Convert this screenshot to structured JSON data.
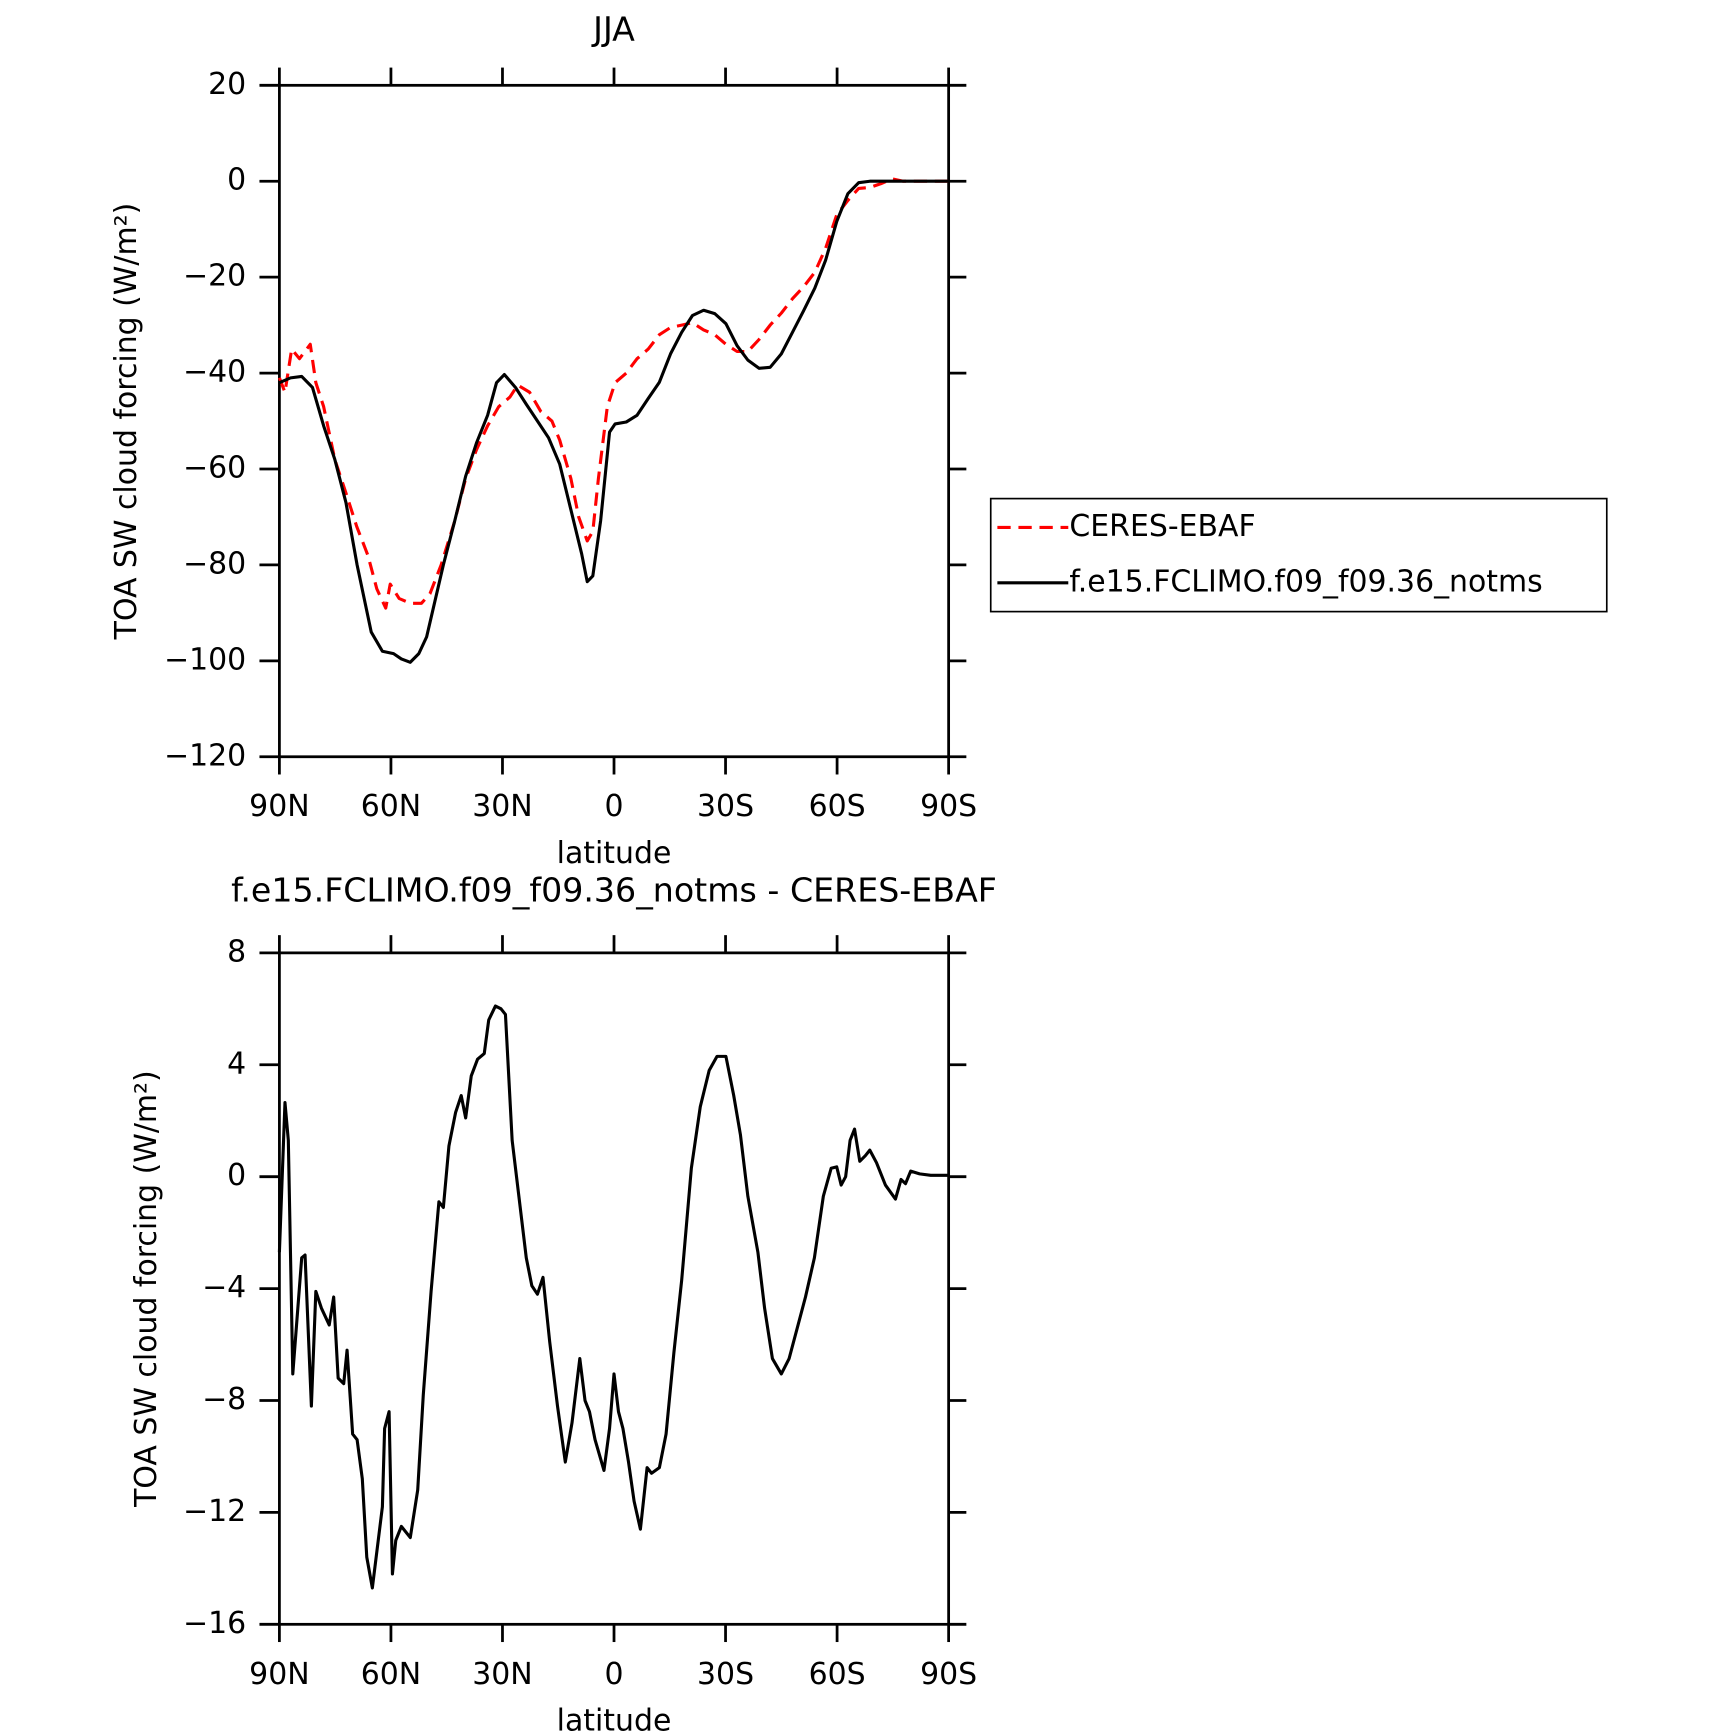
{
  "chart_data": [
    {
      "type": "line",
      "title": "JJA",
      "xlabel": "latitude",
      "ylabel": "TOA SW cloud forcing (W/m²)",
      "xlim": [
        90,
        -90
      ],
      "xticks": [
        {
          "value": 90,
          "label": "90N"
        },
        {
          "value": 60,
          "label": "60N"
        },
        {
          "value": 30,
          "label": "30N"
        },
        0,
        {
          "value": -30,
          "label": "30S"
        },
        {
          "value": -60,
          "label": "60S"
        },
        {
          "value": -90,
          "label": "90S"
        }
      ],
      "ylim": [
        -120,
        20
      ],
      "yticks": [
        {
          "value": -120,
          "label": "−120"
        },
        {
          "value": -100,
          "label": "−100"
        },
        {
          "value": -80,
          "label": "−80"
        },
        {
          "value": -60,
          "label": "−60"
        },
        {
          "value": -40,
          "label": "−40"
        },
        {
          "value": -20,
          "label": "−20"
        },
        0,
        20
      ],
      "legend": "right",
      "series": [
        {
          "name": "CERES-EBAF",
          "color": "#ff0000",
          "line_style": "dashed",
          "x": [
            90,
            88.5,
            86.7,
            84.6,
            81.7,
            80.2,
            78.1,
            75.1,
            72.1,
            69.2,
            66.2,
            63.8,
            61.4,
            60.2,
            57.8,
            54.8,
            51.8,
            49.5,
            46.5,
            42.9,
            39.9,
            37,
            34,
            31,
            28,
            25.9,
            22.7,
            19.7,
            16.7,
            14.6,
            11.6,
            9.5,
            7.2,
            5.7,
            4.2,
            1.8,
            -0.3,
            -3.3,
            -6.2,
            -9.2,
            -12.2,
            -15.2,
            -18.2,
            -21.1,
            -24.1,
            -27.1,
            -30.1,
            -33.1,
            -36,
            -39,
            -42,
            -45,
            -48,
            -51,
            -54,
            -56.9,
            -59.9,
            -62.9,
            -65.8,
            -68.8,
            -71.8,
            -74.8,
            -77.8,
            -90
          ],
          "values": [
            -41,
            -44,
            -35,
            -37,
            -34,
            -42,
            -47,
            -58,
            -65,
            -72,
            -78,
            -85,
            -89,
            -84,
            -87,
            -88,
            -88,
            -86,
            -80,
            -71,
            -62,
            -56,
            -51,
            -47,
            -45,
            -42.5,
            -44,
            -48,
            -50,
            -54,
            -62,
            -70,
            -75,
            -73,
            -62,
            -47,
            -42,
            -40,
            -37,
            -35,
            -32,
            -30.5,
            -30,
            -29.5,
            -31,
            -32,
            -34,
            -35.5,
            -35.5,
            -33,
            -30,
            -27.5,
            -24.5,
            -22,
            -19,
            -14,
            -7,
            -4,
            -1.5,
            -1.3,
            -0.5,
            0.5,
            0,
            0
          ]
        },
        {
          "name": "f.e15.FCLIMO.f09_f09.36_notms",
          "color": "#000000",
          "line_style": "solid",
          "x": [
            90,
            87,
            84,
            81.1,
            78.1,
            75.1,
            72.1,
            69.1,
            65.3,
            62.3,
            59.3,
            57.2,
            54.8,
            52.5,
            50.4,
            48.3,
            45.9,
            42.9,
            39.9,
            37,
            34,
            31.6,
            29.5,
            26.5,
            23.6,
            20.6,
            17.6,
            14.6,
            11.6,
            8.7,
            7.2,
            5.7,
            3.6,
            1.2,
            -0.3,
            -3.3,
            -6.2,
            -9.2,
            -12.2,
            -15.2,
            -18.2,
            -21.1,
            -24.1,
            -27.1,
            -30.1,
            -33.1,
            -36,
            -39,
            -42,
            -45,
            -48,
            -51,
            -54,
            -56.9,
            -59.9,
            -62.9,
            -65.8,
            -68.8,
            -90
          ],
          "values": [
            -42,
            -41,
            -40.7,
            -43,
            -51,
            -58,
            -67,
            -80,
            -94,
            -98,
            -98.5,
            -99.6,
            -100.3,
            -98.5,
            -95,
            -88,
            -80,
            -71,
            -61.5,
            -54.6,
            -48.8,
            -42,
            -40.3,
            -43,
            -46.5,
            -50,
            -53.5,
            -59,
            -68.5,
            -77.7,
            -83.5,
            -82.3,
            -70.8,
            -52.3,
            -50.6,
            -50.2,
            -48.8,
            -45.3,
            -41.9,
            -36,
            -31.5,
            -28,
            -26.9,
            -27.6,
            -29.7,
            -34.3,
            -37.3,
            -39,
            -38.8,
            -36,
            -31.5,
            -27,
            -22.3,
            -16.5,
            -8.4,
            -2.6,
            -0.3,
            0,
            0
          ]
        }
      ]
    },
    {
      "type": "line",
      "title": "f.e15.FCLIMO.f09_f09.36_notms - CERES-EBAF",
      "xlabel": "latitude",
      "ylabel": "TOA SW cloud forcing (W/m²)",
      "xlim": [
        90,
        -90
      ],
      "xticks": [
        {
          "value": 90,
          "label": "90N"
        },
        {
          "value": 60,
          "label": "60N"
        },
        {
          "value": 30,
          "label": "30N"
        },
        0,
        {
          "value": -30,
          "label": "30S"
        },
        {
          "value": -60,
          "label": "60S"
        },
        {
          "value": -90,
          "label": "90S"
        }
      ],
      "ylim": [
        -16,
        8
      ],
      "yticks": [
        {
          "value": -16,
          "label": "−16"
        },
        {
          "value": -12,
          "label": "−12"
        },
        {
          "value": -8,
          "label": "−8"
        },
        {
          "value": -4,
          "label": "−4"
        },
        0,
        4,
        8
      ],
      "series": [
        {
          "color": "#000000",
          "line_style": "solid",
          "x": [
            90,
            88.5,
            87.6,
            86.4,
            84,
            83.1,
            81.4,
            80.2,
            78.7,
            76.6,
            75.4,
            74.2,
            72.7,
            71.8,
            70.3,
            69.1,
            67.7,
            66.5,
            65,
            62.3,
            61.7,
            60.5,
            59.6,
            58.7,
            57.2,
            54.8,
            52.8,
            51.3,
            49.2,
            47.1,
            45.9,
            44.4,
            42.6,
            41.1,
            39.9,
            38.4,
            36.7,
            34.9,
            33.7,
            31.9,
            30.4,
            29.2,
            27.4,
            23.6,
            22.1,
            20.6,
            19.1,
            17.3,
            15.2,
            13.1,
            11.3,
            9.2,
            7.8,
            6.6,
            5.1,
            2.7,
            1.2,
            0,
            -1.2,
            -2.4,
            -3.9,
            -5.4,
            -7.1,
            -8.9,
            -10.1,
            -12.2,
            -14,
            -16.1,
            -18.2,
            -20.8,
            -23.2,
            -25.6,
            -27.7,
            -30.1,
            -32.2,
            -34,
            -36,
            -38.7,
            -40.5,
            -42.6,
            -45,
            -47.1,
            -49.5,
            -51.5,
            -53.9,
            -56.3,
            -58.4,
            -59.9,
            -61.1,
            -62.3,
            -63.5,
            -64.7,
            -66.1,
            -67.6,
            -68.8,
            -70.6,
            -73,
            -75.7,
            -77.2,
            -78.4,
            -79.8,
            -82.2,
            -85.2,
            -90
          ],
          "values": [
            -2.7,
            2.65,
            1.3,
            -7.05,
            -2.9,
            -2.8,
            -8.2,
            -4.1,
            -4.7,
            -5.3,
            -4.3,
            -7.2,
            -7.4,
            -6.2,
            -9.2,
            -9.4,
            -10.8,
            -13.6,
            -14.7,
            -11.8,
            -9,
            -8.4,
            -14.2,
            -13,
            -12.5,
            -12.9,
            -11.2,
            -7.8,
            -4.1,
            -0.9,
            -1.1,
            1.1,
            2.3,
            2.9,
            2.1,
            3.6,
            4.2,
            4.4,
            5.6,
            6.1,
            6,
            5.8,
            1.3,
            -2.9,
            -3.9,
            -4.2,
            -3.6,
            -5.9,
            -8.2,
            -10.2,
            -8.8,
            -6.5,
            -8,
            -8.4,
            -9.4,
            -10.5,
            -9,
            -7.05,
            -8.4,
            -9,
            -10.2,
            -11.6,
            -12.6,
            -10.4,
            -10.6,
            -10.4,
            -9.2,
            -6.3,
            -3.7,
            0.3,
            2.5,
            3.8,
            4.3,
            4.3,
            2.9,
            1.5,
            -0.7,
            -2.7,
            -4.7,
            -6.5,
            -7.05,
            -6.5,
            -5.3,
            -4.3,
            -2.9,
            -0.7,
            0.3,
            0.35,
            -0.3,
            0,
            1.3,
            1.7,
            0.55,
            0.75,
            0.95,
            0.5,
            -0.3,
            -0.8,
            -0.1,
            -0.25,
            0.2,
            0.1,
            0.05,
            0.05
          ]
        }
      ]
    }
  ]
}
